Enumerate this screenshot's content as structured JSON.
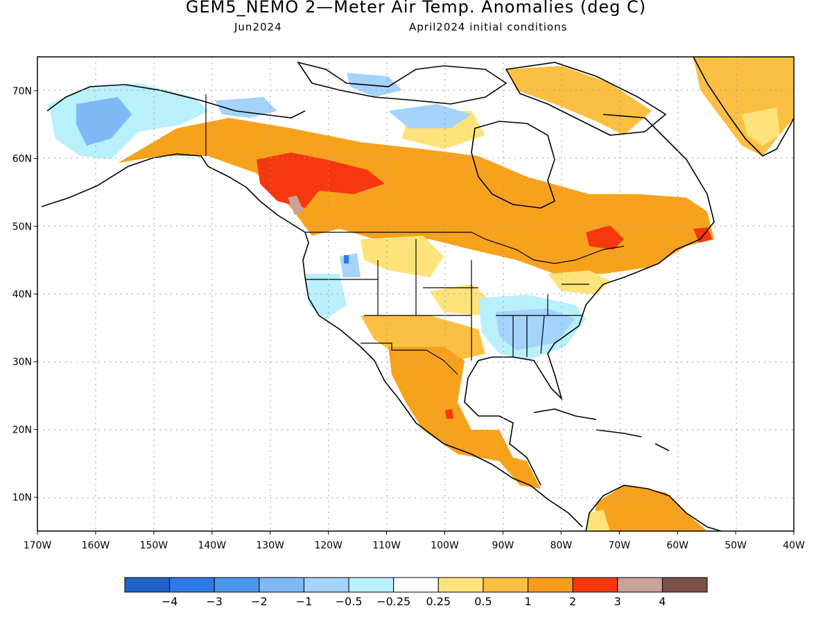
{
  "title": "GEM5_NEMO 2—Meter Air Temp. Anomalies (deg C)",
  "subtitle_left": "Jun2024",
  "subtitle_right": "April2024 initial conditions",
  "map": {
    "lon_labels": [
      "170W",
      "160W",
      "150W",
      "140W",
      "130W",
      "120W",
      "110W",
      "100W",
      "90W",
      "80W",
      "70W",
      "60W",
      "50W",
      "40W"
    ],
    "lat_labels": [
      "10N",
      "20N",
      "30N",
      "40N",
      "50N",
      "60N",
      "70N"
    ],
    "lon_range": [
      -170,
      -40
    ],
    "lat_range": [
      5,
      75
    ],
    "gridlines": "dotted"
  },
  "colorbar": {
    "colors": [
      "#1f62c8",
      "#2f7ae6",
      "#4c98ee",
      "#7fb9f5",
      "#a4d3fb",
      "#b8f0fb",
      "#ffffff",
      "#fde37a",
      "#fbc043",
      "#f89c1e",
      "#f7370d",
      "#c8a39a",
      "#7d5048"
    ],
    "labels": [
      "−4",
      "−3",
      "−2",
      "−1",
      "−0.5",
      "−0.25",
      "0.25",
      "0.5",
      "1",
      "2",
      "3",
      "4"
    ]
  },
  "colors": {
    "land_outline": "#000000",
    "warm_main": "#f7a21d",
    "warm_light": "#fbc043",
    "warm_pale": "#fde37a",
    "hot": "#f7370d",
    "cool_light": "#b8f0fb",
    "cool_mid": "#a4d3fb"
  }
}
